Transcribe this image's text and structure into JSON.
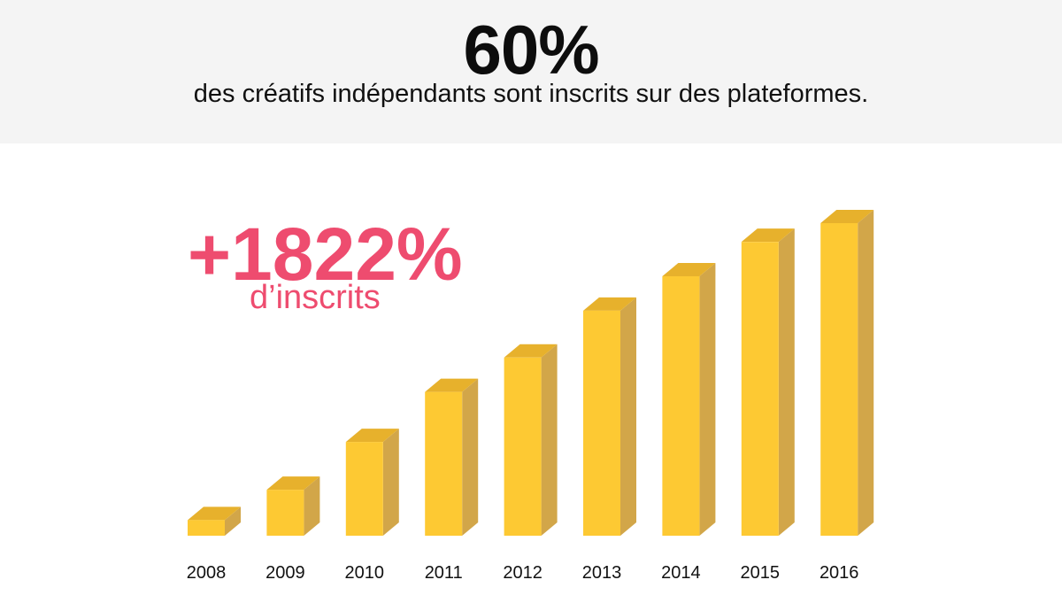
{
  "header": {
    "headline": "60%",
    "subline": "des créatifs indépendants sont inscrits sur des plateformes."
  },
  "highlight": {
    "value": "+1822%",
    "label": "d’inscrits"
  },
  "colors": {
    "header_bg": "#f4f4f4",
    "bar_front": "#fdc933",
    "bar_top": "#e7b12c",
    "bar_side": "#d2a649",
    "accent": "#ee4c6f"
  },
  "chart_data": {
    "type": "bar",
    "categories": [
      "2008",
      "2009",
      "2010",
      "2011",
      "2012",
      "2013",
      "2014",
      "2015",
      "2016"
    ],
    "values": [
      5,
      14.7,
      30,
      46,
      57,
      72,
      83,
      94,
      100
    ],
    "ylim": [
      0,
      100
    ],
    "grid": false,
    "xlabel": "",
    "ylabel": ""
  }
}
